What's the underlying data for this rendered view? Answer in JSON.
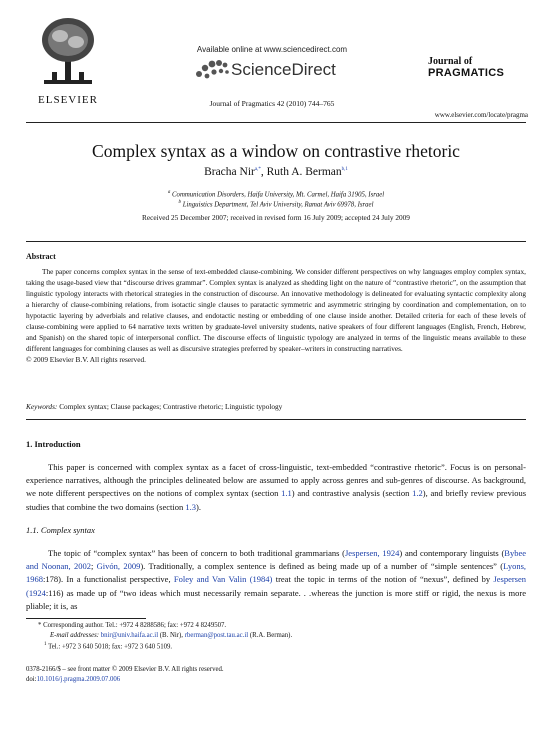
{
  "header": {
    "available_online": "Available online at www.sciencedirect.com",
    "brand": "ScienceDirect",
    "citation": "Journal of Pragmatics 42 (2010) 744–765",
    "publisher": "ELSEVIER",
    "journal_line1": "Journal of",
    "journal_line2": "PRAGMATICS",
    "url": "www.elsevier.com/locate/pragma"
  },
  "article": {
    "title": "Complex syntax as a window on contrastive rhetoric",
    "author1": "Bracha Nir",
    "author1_sup": "a,*",
    "author_sep": ", ",
    "author2": "Ruth A. Berman",
    "author2_sup": "b,1",
    "affil_a_sup": "a",
    "affil_a": "Communication Disorders, Haifa University, Mt. Carmel, Haifa 31905, Israel",
    "affil_b_sup": "b",
    "affil_b": "Linguistics Department, Tel Aviv University, Ramat Aviv 69978, Israel",
    "received": "Received 25 December 2007; received in revised form 16 July 2009; accepted 24 July 2009"
  },
  "abstract": {
    "heading": "Abstract",
    "body": "The paper concerns complex syntax in the sense of text-embedded clause-combining. We consider different perspectives on why languages employ complex syntax, taking the usage-based view that “discourse drives grammar”. Complex syntax is analyzed as shedding light on the nature of “contrastive rhetoric”, on the assumption that linguistic typology interacts with rhetorical strategies in the construction of discourse. An innovative methodology is delineated for evaluating syntactic complexity along a hierarchy of clause-combining relations, from isotactic single clauses to paratactic symmetric and asymmetric stringing by coordination and complementation, on to hypotactic layering by adverbials and relative clauses, and endotactic nesting or embedding of one clause inside another. Detailed criteria for each of these levels of clause-combining were applied to 64 narrative texts written by graduate-level university students, native speakers of four different languages (English, French, Hebrew, and Spanish) on the shared topic of interpersonal conflict. The discourse effects of linguistic typology are analyzed in terms of the linguistic means available to these different languages for combining clauses as well as discursive strategies preferred by speaker–writers in constructing narratives.",
    "copyright": "© 2009 Elsevier B.V. All rights reserved.",
    "keywords_label": "Keywords:",
    "keywords": "Complex syntax; Clause packages; Contrastive rhetoric; Linguistic typology"
  },
  "section1": {
    "heading": "1.  Introduction",
    "p1_a": "This paper is concerned with complex syntax as a facet of cross-linguistic, text-embedded “contrastive rhetoric”. Focus is on personal-experience narratives, although the principles delineated below are assumed to apply across genres and sub-genres of discourse. As background, we note different perspectives on the notions of complex syntax (section ",
    "p1_ref1": "1.1",
    "p1_b": ") and contrastive analysis (section ",
    "p1_ref2": "1.2",
    "p1_c": "), and briefly review previous studies that combine the two domains (section ",
    "p1_ref3": "1.3",
    "p1_d": ")."
  },
  "section11": {
    "heading": "1.1.  Complex syntax",
    "t1": "The topic of “complex syntax” has been of concern to both traditional grammarians (",
    "r1": "Jespersen, 1924",
    "t2": ") and contemporary linguists (",
    "r2": "Bybee and Noonan, 2002",
    "t3": "; ",
    "r3": "Givón, 2009",
    "t4": "). Traditionally, a complex sentence is defined as being made up of a number of “simple sentences” (",
    "r4": "Lyons, 1968",
    "t5": ":178). In a functionalist perspective, ",
    "r5": "Foley and Van Valin (1984)",
    "t6": " treat the topic in terms of the notion of “nexus”, defined by ",
    "r6": "Jespersen (1924",
    "t7": ":116) as made up of “two ideas which must necessarily remain separate. . .whereas the junction is more stiff or rigid, the nexus is more pliable; it is, as"
  },
  "footnotes": {
    "star": "* Corresponding author. Tel.: +972 4 8288586; fax: +972 4 8249507.",
    "email_label": "E-mail addresses:",
    "email1": "bnir@univ.haifa.ac.il",
    "email1_who": " (B. Nir), ",
    "email2": "rberman@post.tau.ac.il",
    "email2_who": " (R.A. Berman).",
    "fn1_sup": "1",
    "fn1": "Tel.: +972 3 640 5018; fax: +972 3 640 5109."
  },
  "footer": {
    "issn": "0378-2166/$ – see front matter © 2009 Elsevier B.V. All rights reserved.",
    "doi_label": "doi:",
    "doi": "10.1016/j.pragma.2009.07.006"
  }
}
